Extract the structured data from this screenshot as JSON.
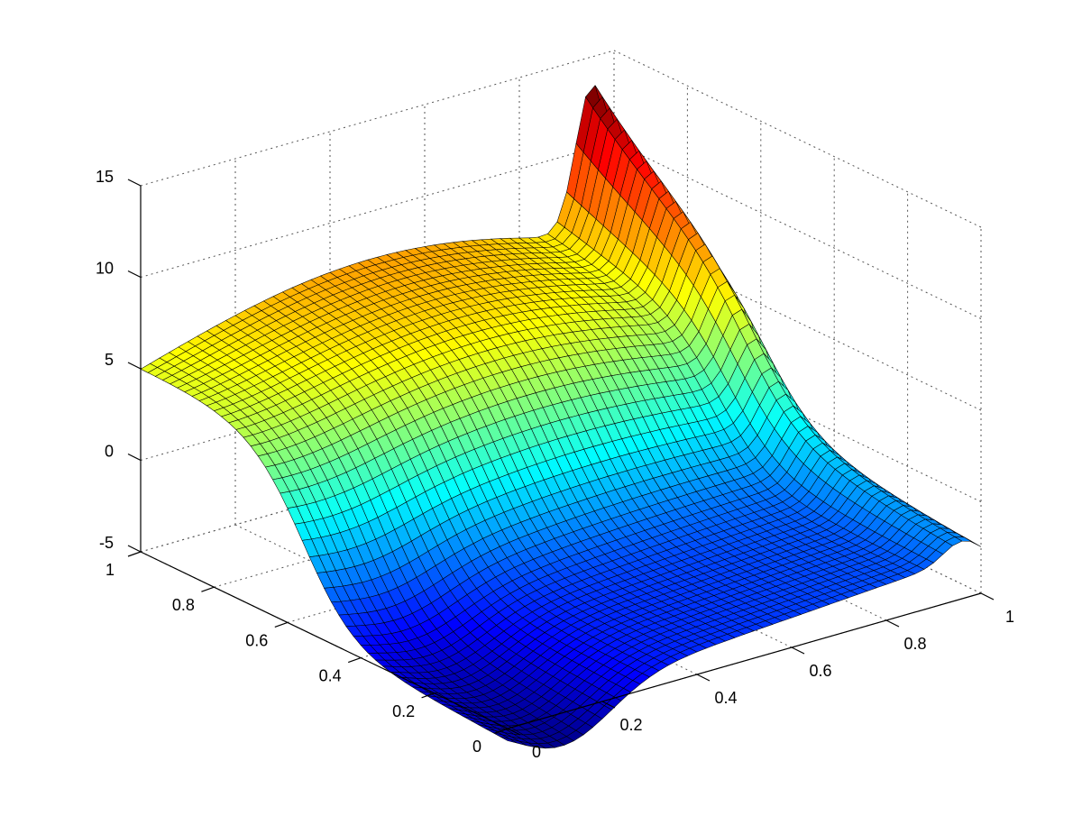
{
  "chart_data": {
    "type": "surface",
    "title": "",
    "xlabel": "",
    "ylabel": "",
    "zlabel": "",
    "xlim": [
      0,
      1
    ],
    "ylim": [
      0,
      1
    ],
    "zlim": [
      -5,
      15
    ],
    "grid": true,
    "box": "open",
    "colormap": "jet",
    "mesh_resolution": [
      50,
      50
    ],
    "x_ticks": [
      "0",
      "0.2",
      "0.4",
      "0.6",
      "0.8",
      "1"
    ],
    "y_ticks": [
      "0",
      "0.2",
      "0.4",
      "0.6",
      "0.8",
      "1"
    ],
    "z_ticks": [
      "-5",
      "0",
      "5",
      "10",
      "15"
    ],
    "approx_function": "z(x,y) = 5 + 2.6·sin(π·x) + 7.3·(y − 1)·x·(1 − x)³·exp(17·(y − 1))·(a step near y≈0.55 blends this ridge into the plane) − 0.35·x",
    "key_points": [
      {
        "x": 0,
        "y": 1,
        "z": 4.7
      },
      {
        "x": 0,
        "y": 0.2,
        "z": -6.2
      },
      {
        "x": 0.1,
        "y": 0,
        "z": -8.0
      },
      {
        "x": 0.95,
        "y": 1,
        "z": 12.8
      },
      {
        "x": 1,
        "y": 1,
        "z": 3.8
      },
      {
        "x": 1,
        "y": 0,
        "z": -2.3
      },
      {
        "x": 0.5,
        "y": 0.6,
        "z": 5.0
      }
    ]
  },
  "colors": {
    "edge": "#000000",
    "grid": "#555555",
    "axis": "#000000",
    "background": "#ffffff"
  }
}
